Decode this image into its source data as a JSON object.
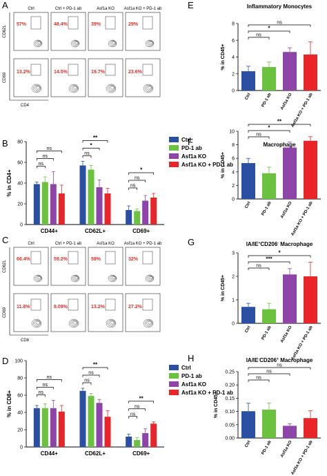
{
  "colors": {
    "ctrl": "#2b4fa3",
    "pd1": "#6ac23f",
    "asf1a": "#8e45a8",
    "combo": "#e8262a",
    "red_text": "#e0302a"
  },
  "flow_panels": {
    "A": {
      "letter": "A",
      "columns": [
        "Ctrl",
        "Ctrl + PD-1 ab",
        "Asf1a KO",
        "Asf1a KO + PD-1 ab"
      ],
      "rows": [
        {
          "ylabel": "CD62L",
          "values": [
            "57%",
            "48.4%",
            "39%",
            "29%"
          ]
        },
        {
          "ylabel": "CD69",
          "values": [
            "13.2%",
            "14.5%",
            "19.7%",
            "23.6%"
          ]
        }
      ],
      "xlabel": "CD4"
    },
    "C": {
      "letter": "C",
      "columns": [
        "Ctrl",
        "Ctrl + PD-1 ab",
        "Asf1a KO",
        "Asf1a KO + PD-1 ab"
      ],
      "rows": [
        {
          "ylabel": "CD62L",
          "values": [
            "66.4%",
            "59.2%",
            "58%",
            "32%"
          ]
        },
        {
          "ylabel": "CD69",
          "values": [
            "11.8%",
            "8.09%",
            "13.2%",
            "27.2%"
          ]
        }
      ],
      "xlabel": "CD8"
    }
  },
  "chart_data": [
    {
      "panel": "B",
      "type": "bar",
      "ylabel": "% in CD4+",
      "yticks": [
        "0",
        "20",
        "40",
        "60",
        "80"
      ],
      "ylim": [
        0,
        80
      ],
      "categories": [
        "CD44+",
        "CD62L+",
        "CD69+"
      ],
      "legend": [
        "Ctrl",
        "PD-1 ab",
        "Asf1a KO",
        "Asf1a KO + PD-1 ab"
      ],
      "legend_position": "top-right",
      "series": [
        {
          "name": "Ctrl",
          "values": [
            39,
            57,
            14
          ],
          "errors": [
            2,
            4,
            4
          ]
        },
        {
          "name": "PD-1 ab",
          "values": [
            41,
            53,
            13
          ],
          "errors": [
            5,
            4,
            2
          ]
        },
        {
          "name": "Asf1a KO",
          "values": [
            39,
            36,
            23
          ],
          "errors": [
            12,
            7,
            5
          ]
        },
        {
          "name": "Asf1a KO + PD-1 ab",
          "values": [
            30,
            30,
            26
          ],
          "errors": [
            8,
            5,
            4
          ]
        }
      ],
      "significance": [
        {
          "group": 0,
          "from": 0,
          "to": 3,
          "label": "ns"
        },
        {
          "group": 0,
          "from": 0,
          "to": 2,
          "label": "ns"
        },
        {
          "group": 0,
          "from": 0,
          "to": 1,
          "label": "ns"
        },
        {
          "group": 1,
          "from": 0,
          "to": 3,
          "label": "**"
        },
        {
          "group": 1,
          "from": 0,
          "to": 2,
          "label": "*"
        },
        {
          "group": 1,
          "from": 0,
          "to": 1,
          "label": "ns"
        },
        {
          "group": 2,
          "from": 0,
          "to": 3,
          "label": "*"
        },
        {
          "group": 2,
          "from": 0,
          "to": 2,
          "label": "ns"
        },
        {
          "group": 2,
          "from": 0,
          "to": 1,
          "label": "ns"
        }
      ]
    },
    {
      "panel": "D",
      "type": "bar",
      "ylabel": "% in CD8+",
      "yticks": [
        "0",
        "20",
        "40",
        "60",
        "80",
        "100"
      ],
      "ylim": [
        0,
        100
      ],
      "categories": [
        "CD44+",
        "CD62L+",
        "CD69+"
      ],
      "legend": [
        "Ctrl",
        "PD-1 ab",
        "Asf1a KO",
        "Asf1a KO + PD-1 ab"
      ],
      "legend_position": "top-right",
      "series": [
        {
          "name": "Ctrl",
          "values": [
            45,
            65,
            12
          ],
          "errors": [
            3,
            3,
            3
          ]
        },
        {
          "name": "PD-1 ab",
          "values": [
            45,
            59,
            8
          ],
          "errors": [
            5,
            3,
            3
          ]
        },
        {
          "name": "Asf1a KO",
          "values": [
            45,
            51,
            16
          ],
          "errors": [
            9,
            4,
            5
          ]
        },
        {
          "name": "Asf1a KO + PD-1 ab",
          "values": [
            41,
            35,
            27
          ],
          "errors": [
            7,
            7,
            2
          ]
        }
      ],
      "significance": [
        {
          "group": 0,
          "from": 0,
          "to": 3,
          "label": "ns"
        },
        {
          "group": 0,
          "from": 0,
          "to": 2,
          "label": "ns"
        },
        {
          "group": 0,
          "from": 0,
          "to": 1,
          "label": "ns"
        },
        {
          "group": 1,
          "from": 0,
          "to": 3,
          "label": "**"
        },
        {
          "group": 1,
          "from": 0,
          "to": 2,
          "label": "ns"
        },
        {
          "group": 1,
          "from": 0,
          "to": 1,
          "label": "ns"
        },
        {
          "group": 2,
          "from": 0,
          "to": 3,
          "label": "**"
        },
        {
          "group": 2,
          "from": 0,
          "to": 2,
          "label": "ns"
        },
        {
          "group": 2,
          "from": 0,
          "to": 1,
          "label": "ns"
        }
      ]
    },
    {
      "panel": "E",
      "type": "bar",
      "title": "Inflammatory Monocytes",
      "ylabel": "% in CD45+",
      "yticks": [
        "0",
        "2",
        "4",
        "6",
        "8"
      ],
      "ylim": [
        0,
        8
      ],
      "categories": [
        "Ctrl",
        "PD-1 ab",
        "Asf1a KO",
        "Asf1a KO + PD-1 ab"
      ],
      "values": [
        2.3,
        2.8,
        4.6,
        4.3
      ],
      "errors": [
        0.6,
        0.6,
        0.5,
        1.5
      ],
      "significance": [
        {
          "from": 0,
          "to": 3,
          "label": "ns"
        },
        {
          "from": 0,
          "to": 2,
          "label": "*"
        },
        {
          "from": 0,
          "to": 1,
          "label": "ns"
        }
      ]
    },
    {
      "panel": "F",
      "type": "bar",
      "title": "Macrophage",
      "ylabel": "% in CD45+",
      "yticks": [
        "0",
        "2",
        "4",
        "6",
        "8",
        "10"
      ],
      "ylim": [
        0,
        10
      ],
      "categories": [
        "Ctrl",
        "PD-1 ab",
        "Asf1a KO",
        "Asf1a KO + PD-1 ab"
      ],
      "values": [
        5.3,
        3.8,
        7.6,
        8.6
      ],
      "errors": [
        0.7,
        0.9,
        0.8,
        0.6
      ],
      "significance": [
        {
          "from": 0,
          "to": 3,
          "label": "**"
        },
        {
          "from": 0,
          "to": 2,
          "label": "*"
        },
        {
          "from": 0,
          "to": 1,
          "label": "ns"
        }
      ]
    },
    {
      "panel": "G",
      "type": "bar",
      "title_parts": [
        "IA/IE",
        "+",
        "CD206",
        "-",
        " Macrophage"
      ],
      "ylabel": "% in CD45+",
      "yticks": [
        "0",
        "1",
        "2",
        "3"
      ],
      "ylim": [
        0,
        3
      ],
      "categories": [
        "Ctrl",
        "PD-1 ab",
        "Asf1a KO",
        "Asf1a KO + PD-1 ab"
      ],
      "values": [
        0.7,
        0.6,
        2.08,
        2.0
      ],
      "errors": [
        0.15,
        0.25,
        0.25,
        0.6
      ],
      "significance": [
        {
          "from": 0,
          "to": 3,
          "label": "*"
        },
        {
          "from": 0,
          "to": 2,
          "label": "***"
        },
        {
          "from": 0,
          "to": 1,
          "label": "ns"
        }
      ]
    },
    {
      "panel": "H",
      "type": "bar",
      "title_parts": [
        "IA/IE",
        "-",
        "CD206",
        "+",
        " Macrophage"
      ],
      "ylabel": "% in CD45+",
      "yticks": [
        "0.00",
        "0.05",
        "0.10",
        "0.15",
        "0.20",
        "0.25"
      ],
      "ylim": [
        0,
        0.25
      ],
      "categories": [
        "Ctrl",
        "PD-1 ab",
        "Asf1a KO",
        "Asf1a KO + PD-1 ab"
      ],
      "values": [
        0.101,
        0.107,
        0.046,
        0.075
      ],
      "errors": [
        0.03,
        0.025,
        0.008,
        0.028
      ],
      "significance": [
        {
          "from": 0,
          "to": 3,
          "label": "ns"
        },
        {
          "from": 0,
          "to": 2,
          "label": "ns"
        },
        {
          "from": 0,
          "to": 1,
          "label": "ns"
        }
      ]
    }
  ]
}
